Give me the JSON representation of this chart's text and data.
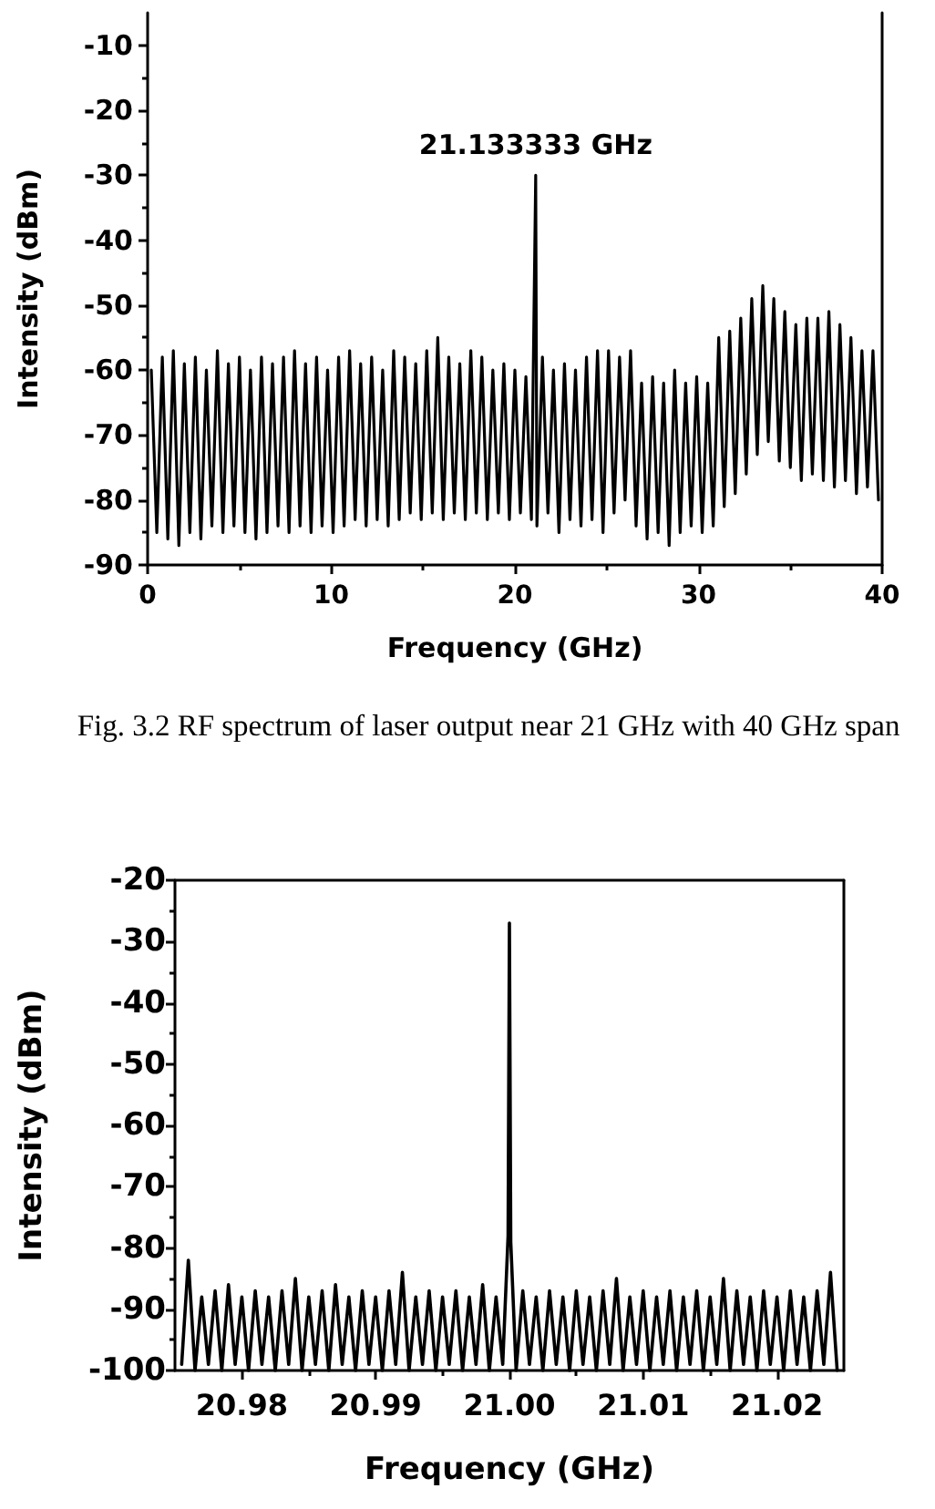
{
  "chart_data": [
    {
      "type": "line",
      "xlabel": "Frequency (GHz)",
      "ylabel": "Intensity (dBm)",
      "annotations": [
        {
          "text": "21.133333 GHz",
          "x": 21.133333,
          "y": -30
        },
        "Fig. 3.2 RF spectrum of laser output near 21 GHz with 40 GHz span"
      ],
      "xlim": [
        0,
        40
      ],
      "xticks": [
        0,
        {
          "value": 5,
          "label": null
        },
        10,
        {
          "value": 15,
          "label": null
        },
        20,
        {
          "value": 25,
          "label": null
        },
        30,
        {
          "value": 35,
          "label": null
        },
        40
      ],
      "ylim": [
        -90,
        -5
      ],
      "yticks": [
        -90,
        {
          "value": -85,
          "label": null
        },
        -80,
        {
          "value": -75,
          "label": null
        },
        -70,
        {
          "value": -65,
          "label": null
        },
        -60,
        {
          "value": -55,
          "label": null
        },
        -50,
        {
          "value": -45,
          "label": null
        },
        -40,
        {
          "value": -35,
          "label": null
        },
        -30,
        {
          "value": -25,
          "label": null
        },
        -20,
        {
          "value": -15,
          "label": null
        },
        -10
      ],
      "color": "#000000",
      "x": [
        0.2,
        0.5,
        0.8,
        1.1,
        1.4,
        1.7,
        2,
        2.3,
        2.6,
        2.9,
        3.2,
        3.5,
        3.8,
        4.1,
        4.4,
        4.7,
        5,
        5.3,
        5.6,
        5.9,
        6.2,
        6.5,
        6.8,
        7.1,
        7.4,
        7.7,
        8,
        8.3,
        8.6,
        8.9,
        9.2,
        9.5,
        9.8,
        10.1,
        10.4,
        10.7,
        11,
        11.3,
        11.6,
        11.9,
        12.2,
        12.5,
        12.8,
        13.1,
        13.4,
        13.7,
        14,
        14.3,
        14.6,
        14.9,
        15.2,
        15.5,
        15.8,
        16.1,
        16.4,
        16.7,
        17,
        17.3,
        17.6,
        17.9,
        18.2,
        18.5,
        18.8,
        19.1,
        19.4,
        19.7,
        20,
        20.3,
        20.6,
        20.9,
        21.133333,
        21.2,
        21.5,
        21.8,
        22.1,
        22.4,
        22.7,
        23,
        23.3,
        23.6,
        23.9,
        24.2,
        24.5,
        24.8,
        25.1,
        25.4,
        25.7,
        26,
        26.3,
        26.6,
        26.9,
        27.2,
        27.5,
        27.8,
        28.1,
        28.4,
        28.7,
        29,
        29.3,
        29.6,
        29.9,
        30.2,
        30.5,
        30.8,
        31.1,
        31.4,
        31.7,
        32,
        32.3,
        32.6,
        32.9,
        33.2,
        33.5,
        33.8,
        34.1,
        34.4,
        34.7,
        35,
        35.3,
        35.6,
        35.9,
        36.2,
        36.5,
        36.8,
        37.1,
        37.4,
        37.7,
        38,
        38.3,
        38.6,
        38.9,
        39.2,
        39.5,
        39.8
      ],
      "values": [
        -60,
        -85,
        -58,
        -86,
        -57,
        -87,
        -59,
        -85,
        -58,
        -86,
        -60,
        -84,
        -57,
        -85,
        -59,
        -84,
        -58,
        -85,
        -60,
        -86,
        -58,
        -85,
        -59,
        -84,
        -58,
        -85,
        -57,
        -84,
        -59,
        -85,
        -58,
        -84,
        -60,
        -85,
        -58,
        -84,
        -57,
        -83,
        -59,
        -84,
        -58,
        -83,
        -60,
        -84,
        -57,
        -83,
        -58,
        -82,
        -59,
        -83,
        -57,
        -82,
        -55,
        -83,
        -58,
        -82,
        -59,
        -83,
        -57,
        -82,
        -58,
        -83,
        -60,
        -82,
        -59,
        -83,
        -60,
        -82,
        -61,
        -83,
        -30,
        -84,
        -58,
        -82,
        -60,
        -85,
        -59,
        -83,
        -60,
        -84,
        -58,
        -83,
        -57,
        -85,
        -57,
        -82,
        -58,
        -80,
        -57,
        -84,
        -62,
        -86,
        -61,
        -85,
        -62,
        -87,
        -60,
        -85,
        -62,
        -84,
        -61,
        -85,
        -62,
        -84,
        -55,
        -81,
        -54,
        -79,
        -52,
        -76,
        -49,
        -73,
        -47,
        -71,
        -49,
        -74,
        -51,
        -75,
        -53,
        -77,
        -52,
        -76,
        -52,
        -77,
        -51,
        -78,
        -53,
        -77,
        -55,
        -79,
        -57,
        -78,
        -57,
        -80
      ]
    },
    {
      "type": "line",
      "xlabel": "Frequency (GHz)",
      "ylabel": "Intensity (dBm)",
      "xlim": [
        20.975,
        21.025
      ],
      "xticks": [
        20.98,
        {
          "value": 20.985,
          "label": null
        },
        20.99,
        {
          "value": 20.995,
          "label": null
        },
        {
          "value": 21,
          "label": "21.00"
        },
        {
          "value": 21.005,
          "label": null
        },
        21.01,
        {
          "value": 21.015,
          "label": null
        },
        21.02
      ],
      "ylim": [
        -100,
        -20
      ],
      "yticks": [
        -100,
        {
          "value": -95,
          "label": null
        },
        -90,
        {
          "value": -85,
          "label": null
        },
        -80,
        {
          "value": -75,
          "label": null
        },
        -70,
        {
          "value": -65,
          "label": null
        },
        -60,
        {
          "value": -55,
          "label": null
        },
        -50,
        {
          "value": -45,
          "label": null
        },
        -40,
        {
          "value": -35,
          "label": null
        },
        -30,
        {
          "value": -25,
          "label": null
        },
        -20
      ],
      "color": "#000000",
      "x": [
        20.9755,
        20.976,
        20.9765,
        20.977,
        20.9775,
        20.978,
        20.9785,
        20.979,
        20.9795,
        20.98,
        20.9805,
        20.981,
        20.9815,
        20.982,
        20.9825,
        20.983,
        20.9835,
        20.984,
        20.9845,
        20.985,
        20.9855,
        20.986,
        20.9865,
        20.987,
        20.9875,
        20.988,
        20.9885,
        20.989,
        20.9895,
        20.99,
        20.9905,
        20.991,
        20.9915,
        20.992,
        20.9925,
        20.993,
        20.9935,
        20.994,
        20.9945,
        20.995,
        20.9955,
        20.996,
        20.9965,
        20.997,
        20.9975,
        20.998,
        20.9985,
        20.999,
        20.9995,
        20.9999,
        21,
        21.0001,
        21.0005,
        21.001,
        21.0015,
        21.002,
        21.0025,
        21.003,
        21.0035,
        21.004,
        21.0045,
        21.005,
        21.0055,
        21.006,
        21.0065,
        21.007,
        21.0075,
        21.008,
        21.0085,
        21.009,
        21.0095,
        21.01,
        21.0105,
        21.011,
        21.0115,
        21.012,
        21.0125,
        21.013,
        21.0135,
        21.014,
        21.0145,
        21.015,
        21.0155,
        21.016,
        21.0165,
        21.017,
        21.0175,
        21.018,
        21.0185,
        21.019,
        21.0195,
        21.02,
        21.0205,
        21.021,
        21.0215,
        21.022,
        21.0225,
        21.023,
        21.0235,
        21.024,
        21.0245
      ],
      "values": [
        -99,
        -82,
        -100,
        -88,
        -99,
        -87,
        -100,
        -86,
        -99,
        -88,
        -100,
        -87,
        -99,
        -88,
        -100,
        -87,
        -99,
        -85,
        -100,
        -88,
        -99,
        -87,
        -100,
        -86,
        -99,
        -88,
        -100,
        -87,
        -99,
        -88,
        -100,
        -87,
        -99,
        -84,
        -100,
        -88,
        -99,
        -87,
        -100,
        -88,
        -99,
        -87,
        -100,
        -88,
        -99,
        -86,
        -100,
        -88,
        -99,
        -78,
        -27,
        -79,
        -100,
        -87,
        -99,
        -88,
        -100,
        -87,
        -99,
        -88,
        -100,
        -87,
        -99,
        -88,
        -100,
        -87,
        -99,
        -85,
        -100,
        -88,
        -99,
        -87,
        -100,
        -88,
        -99,
        -87,
        -100,
        -88,
        -99,
        -87,
        -100,
        -88,
        -99,
        -85,
        -100,
        -87,
        -99,
        -88,
        -100,
        -87,
        -99,
        -88,
        -100,
        -87,
        -99,
        -88,
        -100,
        -87,
        -99,
        -84,
        -100
      ]
    }
  ]
}
